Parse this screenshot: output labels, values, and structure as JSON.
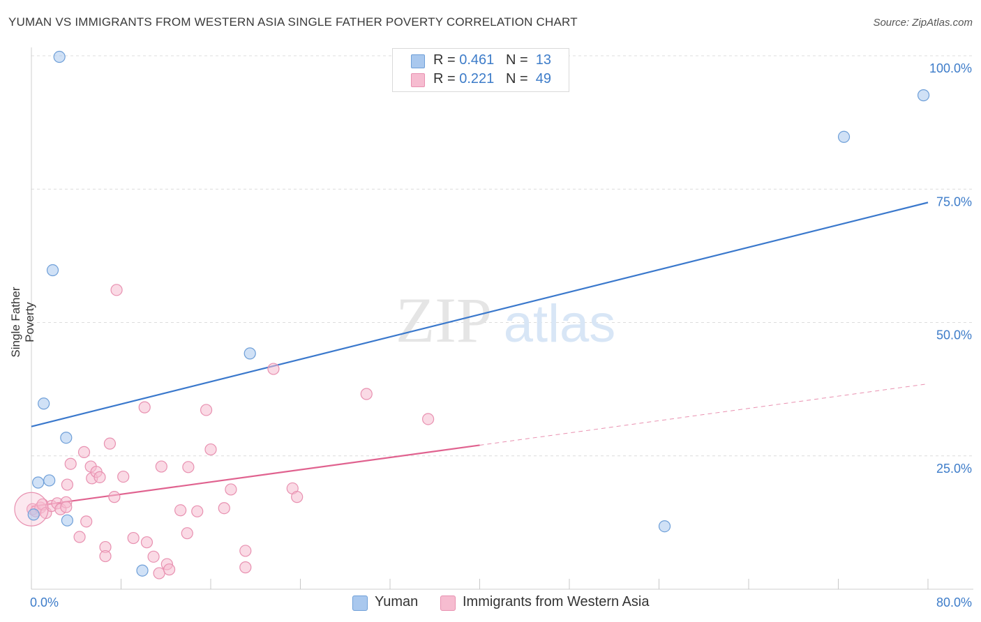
{
  "title": "YUMAN VS IMMIGRANTS FROM WESTERN ASIA SINGLE FATHER POVERTY CORRELATION CHART",
  "source": "Source: ZipAtlas.com",
  "watermark": {
    "zip": "ZIP",
    "atlas": "atlas"
  },
  "legend": {
    "yuman": {
      "r_label": "R =",
      "r_value": "0.461",
      "n_label": "N =",
      "n_value": "13"
    },
    "immigrants": {
      "r_label": "R =",
      "r_value": "0.221",
      "n_label": "N =",
      "n_value": "49"
    }
  },
  "bottom_legend": {
    "yuman": "Yuman",
    "immigrants": "Immigrants from Western Asia"
  },
  "colors": {
    "yuman_fill": "#a9c8ee",
    "yuman_stroke": "#6e9fd8",
    "yuman_line": "#3a78cc",
    "imm_fill": "#f6bcd0",
    "imm_stroke": "#e890b0",
    "imm_line": "#e0628f",
    "tick_label": "#3d7cc9",
    "grid": "#dcdcdc"
  },
  "chart_data": {
    "type": "scatter",
    "title": "YUMAN VS IMMIGRANTS FROM WESTERN ASIA SINGLE FATHER POVERTY CORRELATION CHART",
    "xlabel": "",
    "ylabel": "Single Father Poverty",
    "xlim": [
      0,
      80
    ],
    "ylim": [
      0,
      100
    ],
    "x_tick_labels": [
      "0.0%",
      "80.0%"
    ],
    "y_ticks": [
      25,
      50,
      75,
      100
    ],
    "y_tick_labels": [
      "25.0%",
      "50.0%",
      "75.0%",
      "100.0%"
    ],
    "grid": true,
    "series": [
      {
        "name": "Yuman",
        "points": [
          [
            2.5,
            99.8
          ],
          [
            1.9,
            59.8
          ],
          [
            1.1,
            34.8
          ],
          [
            3.1,
            28.4
          ],
          [
            0.6,
            20.0
          ],
          [
            1.6,
            20.4
          ],
          [
            3.2,
            12.9
          ],
          [
            0.2,
            14.0
          ],
          [
            9.9,
            3.5
          ],
          [
            19.5,
            44.2
          ],
          [
            56.5,
            11.8
          ],
          [
            72.5,
            84.8
          ],
          [
            79.6,
            92.6
          ]
        ],
        "trend": {
          "x0": 0,
          "y0": 30.5,
          "x1": 80,
          "y1": 72.5,
          "solid_until": 80
        }
      },
      {
        "name": "Immigrants from Western Asia",
        "points": [
          [
            0.1,
            15.0
          ],
          [
            0.4,
            14.6
          ],
          [
            0.8,
            15.3
          ],
          [
            1.0,
            15.9
          ],
          [
            1.3,
            14.3
          ],
          [
            1.8,
            15.6
          ],
          [
            2.3,
            16.1
          ],
          [
            2.6,
            15.0
          ],
          [
            3.1,
            16.3
          ],
          [
            3.1,
            15.4
          ],
          [
            3.2,
            19.6
          ],
          [
            3.5,
            23.5
          ],
          [
            4.3,
            9.8
          ],
          [
            4.7,
            25.7
          ],
          [
            4.9,
            12.7
          ],
          [
            5.3,
            23.0
          ],
          [
            5.4,
            20.8
          ],
          [
            5.8,
            22.0
          ],
          [
            6.1,
            21.0
          ],
          [
            6.6,
            7.9
          ],
          [
            6.6,
            6.2
          ],
          [
            7.0,
            27.3
          ],
          [
            7.4,
            17.3
          ],
          [
            7.6,
            56.1
          ],
          [
            8.2,
            21.1
          ],
          [
            9.1,
            9.6
          ],
          [
            10.1,
            34.1
          ],
          [
            10.3,
            8.8
          ],
          [
            10.9,
            6.1
          ],
          [
            11.4,
            3.0
          ],
          [
            11.6,
            23.0
          ],
          [
            12.1,
            4.7
          ],
          [
            12.3,
            3.7
          ],
          [
            13.3,
            14.8
          ],
          [
            13.9,
            10.5
          ],
          [
            14.0,
            22.9
          ],
          [
            14.8,
            14.6
          ],
          [
            15.6,
            33.6
          ],
          [
            16.0,
            26.2
          ],
          [
            17.2,
            15.2
          ],
          [
            17.8,
            18.7
          ],
          [
            19.1,
            7.2
          ],
          [
            19.1,
            4.1
          ],
          [
            21.6,
            41.3
          ],
          [
            23.3,
            18.9
          ],
          [
            23.7,
            17.3
          ],
          [
            29.9,
            36.6
          ],
          [
            35.4,
            31.9
          ],
          [
            0.0,
            15.0
          ]
        ],
        "trend": {
          "x0": 0,
          "y0": 15.5,
          "x1": 80,
          "y1": 38.5,
          "solid_until": 40
        }
      }
    ]
  }
}
